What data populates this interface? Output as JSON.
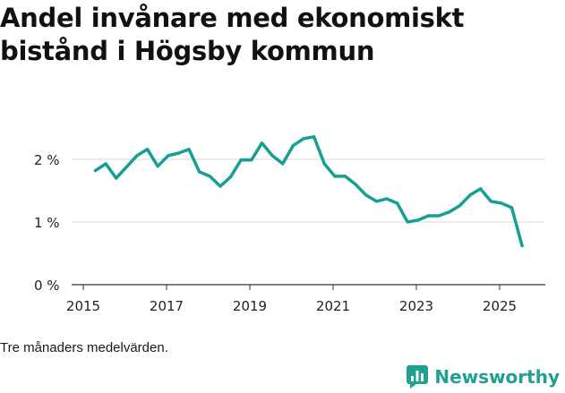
{
  "chart_data": {
    "type": "line",
    "title": "Andel invånare med ekonomiskt bistånd i Högsby kommun",
    "xlabel": "",
    "ylabel": "",
    "xlim": [
      2015,
      2026.2
    ],
    "ylim": [
      0,
      2.6
    ],
    "x_ticks": [
      2015,
      2017,
      2019,
      2021,
      2023,
      2025
    ],
    "x_tick_labels": [
      "2015",
      "2017",
      "2019",
      "2021",
      "2023",
      "2025"
    ],
    "y_ticks": [
      0,
      1,
      2
    ],
    "y_tick_labels": [
      "0 %",
      "1 %",
      "2 %"
    ],
    "grid": true,
    "series": [
      {
        "name": "Andel invånare med ekonomiskt bistånd",
        "color": "#17a091",
        "x": [
          2015.29,
          2015.54,
          2015.79,
          2016.04,
          2016.29,
          2016.54,
          2016.79,
          2017.04,
          2017.29,
          2017.54,
          2017.79,
          2018.04,
          2018.29,
          2018.54,
          2018.79,
          2019.04,
          2019.29,
          2019.54,
          2019.79,
          2020.04,
          2020.29,
          2020.54,
          2020.79,
          2021.04,
          2021.29,
          2021.54,
          2021.79,
          2022.04,
          2022.29,
          2022.54,
          2022.79,
          2023.04,
          2023.29,
          2023.54,
          2023.79,
          2024.04,
          2024.29,
          2024.54,
          2024.79,
          2025.04,
          2025.29,
          2025.54
        ],
        "values": [
          1.82,
          1.93,
          1.7,
          1.88,
          2.06,
          2.16,
          1.89,
          2.06,
          2.1,
          2.16,
          1.8,
          1.73,
          1.57,
          1.72,
          1.99,
          1.99,
          2.26,
          2.06,
          1.93,
          2.22,
          2.33,
          2.36,
          1.93,
          1.73,
          1.73,
          1.6,
          1.43,
          1.33,
          1.37,
          1.3,
          1.0,
          1.03,
          1.1,
          1.1,
          1.16,
          1.26,
          1.43,
          1.53,
          1.33,
          1.3,
          1.23,
          0.62
        ]
      }
    ]
  },
  "note": "Tre månaders medelvärden.",
  "brand": {
    "name": "Newsworthy",
    "icon": "bar-chart-logo-icon",
    "color": "#1fa092"
  }
}
